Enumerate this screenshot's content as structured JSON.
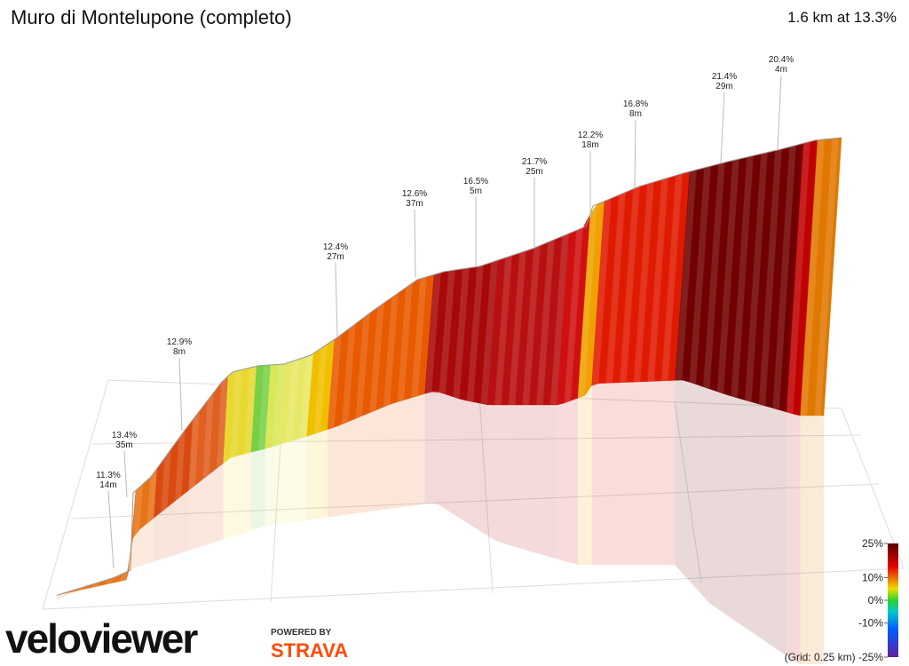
{
  "chart_data": {
    "type": "profile3d",
    "title": "Muro di Montelupone (completo)",
    "subtitle": "1.6 km at 13.3%",
    "annotations": {
      "grade": [
        11.3,
        13.4,
        12.9,
        12.4,
        12.6,
        16.5,
        21.7,
        12.2,
        16.8,
        21.4,
        20.4
      ],
      "grade_labels": [
        "11.3%",
        "13.4%",
        "12.9%",
        "12.4%",
        "12.6%",
        "16.5%",
        "21.7%",
        "12.2%",
        "16.8%",
        "21.4%",
        "20.4%"
      ],
      "length": [
        14,
        35,
        8,
        27,
        37,
        5,
        25,
        18,
        8,
        29,
        4
      ],
      "length_labels": [
        "14m",
        "35m",
        "8m",
        "27m",
        "37m",
        "5m",
        "25m",
        "18m",
        "8m",
        "29m",
        "4m"
      ]
    },
    "colorbar_ticks": [
      {
        "value": 25,
        "label": "25%"
      },
      {
        "value": 10,
        "label": "10%"
      },
      {
        "value": 0,
        "label": "0%"
      },
      {
        "value": -10,
        "label": "-10%"
      },
      {
        "value": -25,
        "label": "(Grid: 0.25 km) -25%"
      }
    ],
    "colorbar_lim": [
      -25,
      25
    ],
    "logo": {
      "brand": "veloviewer",
      "powered": "POWERED BY",
      "partner": "STRAVA"
    }
  }
}
